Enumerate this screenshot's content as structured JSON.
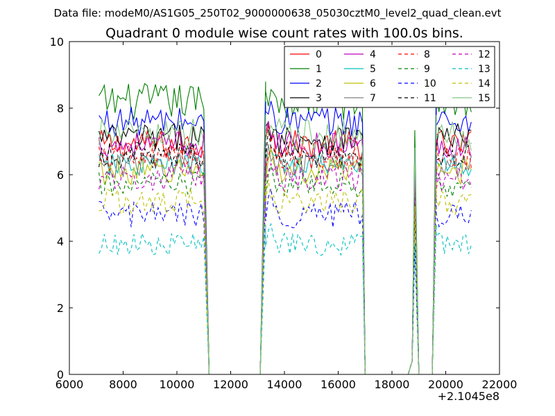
{
  "figure": {
    "suptitle": "Data file: modeM0/AS1G05_250T02_9000000638_05030cztM0_level2_quad_clean.evt",
    "offset_text": "+2.1045e8"
  },
  "chart_data": {
    "type": "line",
    "title": "Quadrant 0 module wise count rates with 100.0s bins.",
    "xlabel": "",
    "ylabel": "",
    "xlim": [
      6000,
      22000
    ],
    "ylim": [
      0,
      10
    ],
    "x_ticks": [
      6000,
      8000,
      10000,
      12000,
      14000,
      16000,
      18000,
      20000,
      22000
    ],
    "x_tick_labels": [
      "6000",
      "8000",
      "10000",
      "12000",
      "14000",
      "16000",
      "18000",
      "20000",
      "22000"
    ],
    "y_ticks": [
      0,
      2,
      4,
      6,
      8,
      10
    ],
    "y_tick_labels": [
      "0",
      "2",
      "4",
      "6",
      "8",
      "10"
    ],
    "grid": false,
    "legend_position": "top-right",
    "bin_seconds": 100,
    "segments": [
      {
        "start": 7100,
        "end": 11000,
        "kind": "data"
      },
      {
        "start": 11000,
        "end": 11200,
        "kind": "ramp_down"
      },
      {
        "start": 11200,
        "end": 13100,
        "kind": "zero"
      },
      {
        "start": 13100,
        "end": 13300,
        "kind": "ramp_up"
      },
      {
        "start": 13300,
        "end": 16900,
        "kind": "data"
      },
      {
        "start": 16900,
        "end": 17000,
        "kind": "ramp_down"
      },
      {
        "start": 17000,
        "end": 18600,
        "kind": "zero"
      },
      {
        "start": 18600,
        "end": 18850,
        "kind": "spike"
      },
      {
        "start": 18850,
        "end": 19000,
        "kind": "ramp_down"
      },
      {
        "start": 19000,
        "end": 19500,
        "kind": "zero"
      },
      {
        "start": 19500,
        "end": 19650,
        "kind": "ramp_up"
      },
      {
        "start": 19650,
        "end": 21000,
        "kind": "data"
      }
    ],
    "series": [
      {
        "name": "0",
        "color": "#ff0000",
        "style": "solid",
        "level": 6.9,
        "noise": 0.45
      },
      {
        "name": "1",
        "color": "#008000",
        "style": "solid",
        "level": 8.2,
        "noise": 0.55
      },
      {
        "name": "2",
        "color": "#0000ff",
        "style": "solid",
        "level": 7.6,
        "noise": 0.45
      },
      {
        "name": "3",
        "color": "#000000",
        "style": "solid",
        "level": 7.1,
        "noise": 0.45
      },
      {
        "name": "4",
        "color": "#bf00bf",
        "style": "solid",
        "level": 6.9,
        "noise": 0.4
      },
      {
        "name": "5",
        "color": "#00bfbf",
        "style": "solid",
        "level": 6.3,
        "noise": 0.35
      },
      {
        "name": "6",
        "color": "#bfbf00",
        "style": "solid",
        "level": 6.1,
        "noise": 0.4
      },
      {
        "name": "7",
        "color": "#808080",
        "style": "solid",
        "level": 6.3,
        "noise": 0.4
      },
      {
        "name": "8",
        "color": "#ff0000",
        "style": "dashed",
        "level": 6.5,
        "noise": 0.4
      },
      {
        "name": "9",
        "color": "#008000",
        "style": "dashed",
        "level": 5.7,
        "noise": 0.4
      },
      {
        "name": "10",
        "color": "#0000ff",
        "style": "dashed",
        "level": 4.8,
        "noise": 0.4
      },
      {
        "name": "11",
        "color": "#000000",
        "style": "dashed",
        "level": 6.6,
        "noise": 0.4
      },
      {
        "name": "12",
        "color": "#bf00bf",
        "style": "dashed",
        "level": 5.9,
        "noise": 0.4
      },
      {
        "name": "13",
        "color": "#00bfbf",
        "style": "dashed",
        "level": 3.9,
        "noise": 0.35
      },
      {
        "name": "14",
        "color": "#bfbf00",
        "style": "dashed",
        "level": 5.2,
        "noise": 0.4
      },
      {
        "name": "15",
        "color": "#80c880",
        "style": "solid",
        "level": 7.2,
        "noise": 0.5
      }
    ]
  }
}
